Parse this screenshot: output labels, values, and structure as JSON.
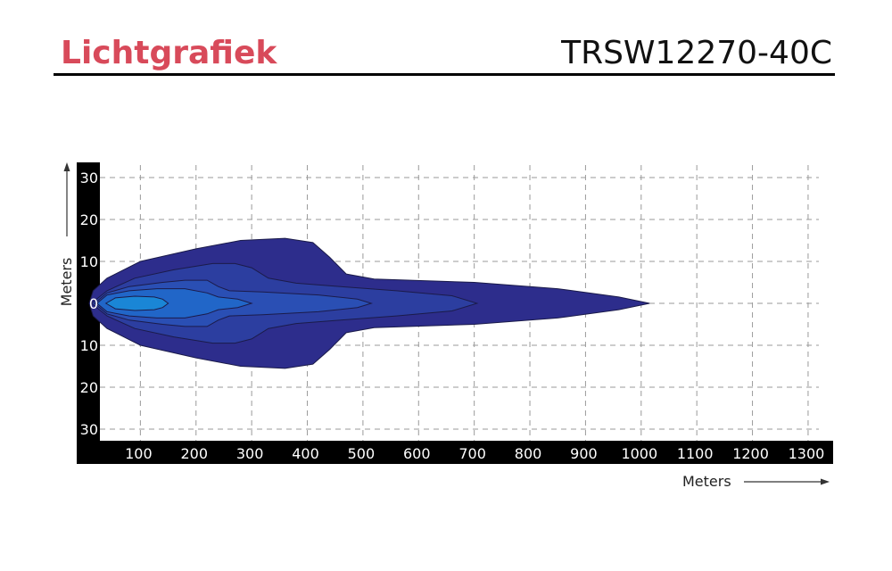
{
  "header": {
    "brand": "Lichtgrafiek",
    "model": "TRSW12270-40C",
    "brand_color": "#d84a5a"
  },
  "chart_data": {
    "type": "area",
    "title": "",
    "xlabel": "Meters",
    "ylabel": "Meters",
    "x_ticks": [
      100,
      200,
      300,
      400,
      500,
      600,
      700,
      800,
      900,
      1000,
      1100,
      1200,
      1300
    ],
    "y_ticks": [
      30,
      20,
      10,
      0,
      10,
      20,
      30
    ],
    "y_tick_values": [
      30,
      20,
      10,
      0,
      -10,
      -20,
      -30
    ],
    "xlim": [
      0,
      1350
    ],
    "ylim": [
      -33,
      33
    ],
    "grid": true,
    "legend": "none",
    "axis_band_color": "#000000",
    "tick_label_color": "#ffffff",
    "zones": [
      {
        "name": "zone-1",
        "color": "#2d2d8c",
        "points": [
          [
            8,
            0
          ],
          [
            15,
            -3
          ],
          [
            40,
            -6
          ],
          [
            100,
            -10
          ],
          [
            200,
            -13
          ],
          [
            280,
            -15
          ],
          [
            360,
            -15.5
          ],
          [
            410,
            -14.5
          ],
          [
            440,
            -11
          ],
          [
            470,
            -7
          ],
          [
            520,
            -5.8
          ],
          [
            700,
            -5
          ],
          [
            850,
            -3.5
          ],
          [
            960,
            -1.5
          ],
          [
            1015,
            0
          ],
          [
            960,
            1.5
          ],
          [
            850,
            3.5
          ],
          [
            700,
            5
          ],
          [
            520,
            5.8
          ],
          [
            470,
            7
          ],
          [
            440,
            11
          ],
          [
            410,
            14.5
          ],
          [
            360,
            15.5
          ],
          [
            280,
            15
          ],
          [
            200,
            13
          ],
          [
            100,
            10
          ],
          [
            40,
            6
          ],
          [
            15,
            3
          ]
        ]
      },
      {
        "name": "zone-2",
        "color": "#2c3ea0",
        "points": [
          [
            12,
            0
          ],
          [
            40,
            -3
          ],
          [
            90,
            -6
          ],
          [
            160,
            -8
          ],
          [
            230,
            -9.5
          ],
          [
            270,
            -9.5
          ],
          [
            300,
            -8.5
          ],
          [
            330,
            -6
          ],
          [
            380,
            -4.8
          ],
          [
            460,
            -4
          ],
          [
            560,
            -3
          ],
          [
            660,
            -1.8
          ],
          [
            705,
            0
          ],
          [
            660,
            1.8
          ],
          [
            560,
            3
          ],
          [
            460,
            4
          ],
          [
            380,
            4.8
          ],
          [
            330,
            6
          ],
          [
            300,
            8.5
          ],
          [
            270,
            9.5
          ],
          [
            230,
            9.5
          ],
          [
            160,
            8
          ],
          [
            90,
            6
          ],
          [
            40,
            3
          ]
        ]
      },
      {
        "name": "zone-3",
        "color": "#2a4fb4",
        "points": [
          [
            18,
            0
          ],
          [
            40,
            -2.5
          ],
          [
            80,
            -4
          ],
          [
            140,
            -5
          ],
          [
            180,
            -5.5
          ],
          [
            220,
            -5.5
          ],
          [
            240,
            -4
          ],
          [
            260,
            -3
          ],
          [
            320,
            -2.7
          ],
          [
            420,
            -2
          ],
          [
            490,
            -1
          ],
          [
            515,
            0
          ],
          [
            490,
            1
          ],
          [
            420,
            2
          ],
          [
            320,
            2.7
          ],
          [
            260,
            3
          ],
          [
            240,
            4
          ],
          [
            220,
            5.5
          ],
          [
            180,
            5.5
          ],
          [
            140,
            5
          ],
          [
            80,
            4
          ],
          [
            40,
            2.5
          ]
        ]
      },
      {
        "name": "zone-4",
        "color": "#2166c8",
        "points": [
          [
            22,
            0
          ],
          [
            40,
            -2
          ],
          [
            80,
            -3
          ],
          [
            130,
            -3.5
          ],
          [
            180,
            -3.5
          ],
          [
            220,
            -2.5
          ],
          [
            240,
            -1.5
          ],
          [
            275,
            -1
          ],
          [
            300,
            0
          ],
          [
            275,
            1
          ],
          [
            240,
            1.5
          ],
          [
            220,
            2.5
          ],
          [
            180,
            3.5
          ],
          [
            130,
            3.5
          ],
          [
            80,
            3
          ],
          [
            40,
            2
          ]
        ]
      },
      {
        "name": "zone-5",
        "color": "#1a86d6",
        "points": [
          [
            38,
            0
          ],
          [
            55,
            -1.3
          ],
          [
            90,
            -1.7
          ],
          [
            125,
            -1.5
          ],
          [
            140,
            -1
          ],
          [
            150,
            0
          ],
          [
            140,
            1
          ],
          [
            125,
            1.5
          ],
          [
            90,
            1.7
          ],
          [
            55,
            1.3
          ]
        ]
      }
    ]
  }
}
